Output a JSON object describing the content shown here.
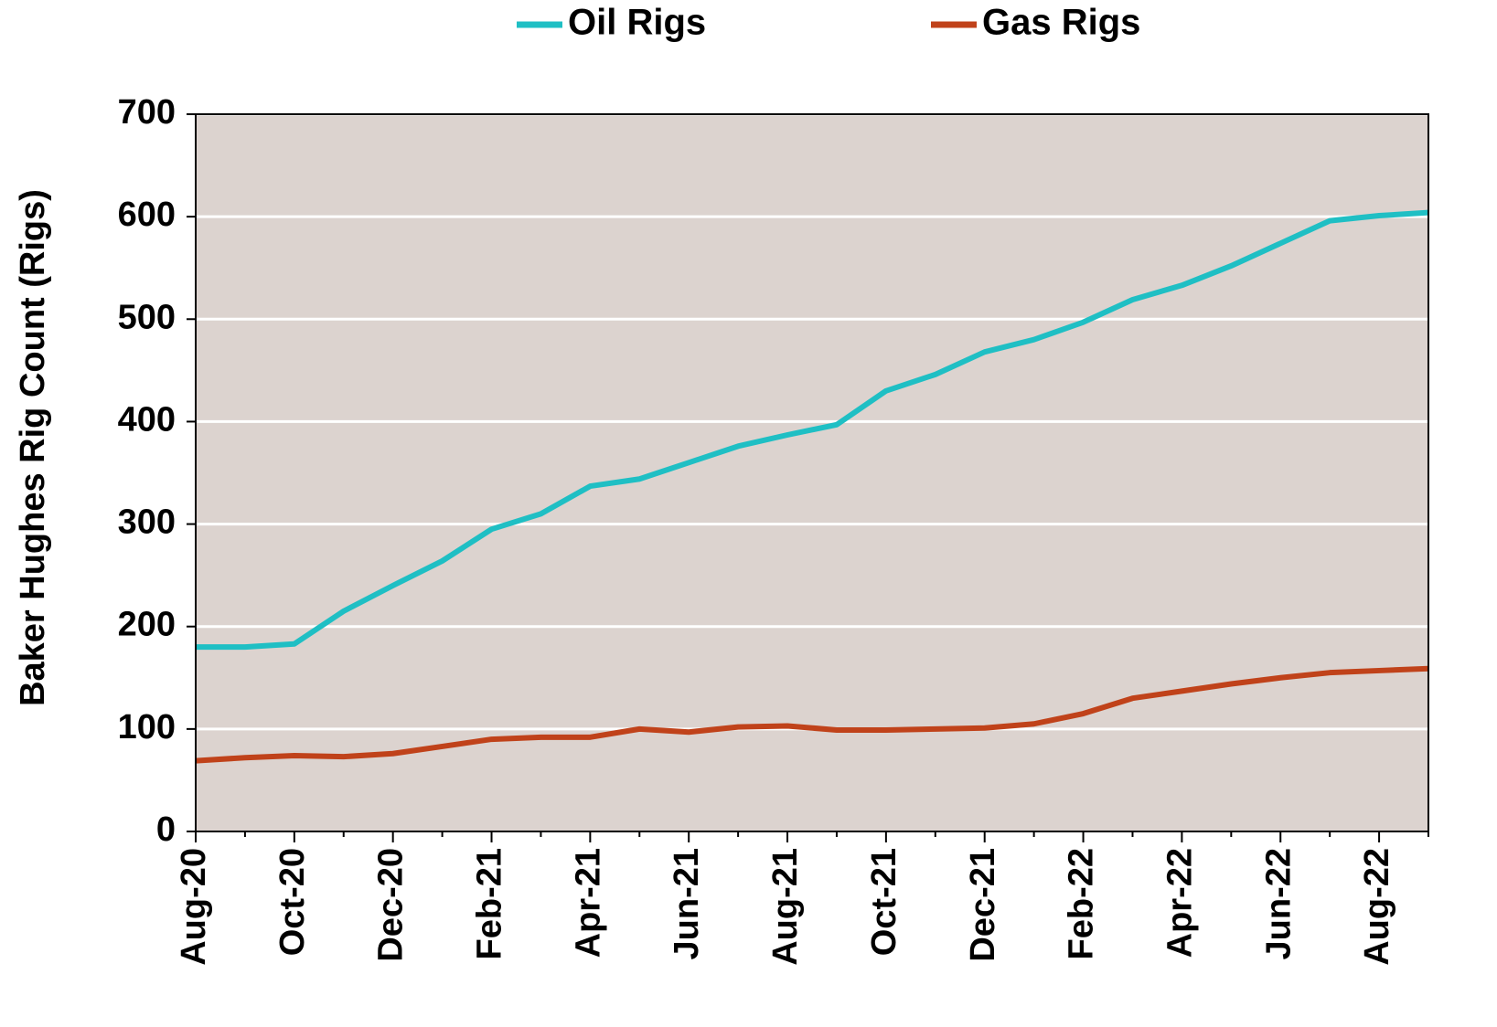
{
  "chart_data": {
    "type": "line",
    "y_label": "Baker Hughes Rig Count (Rigs)",
    "categories": [
      "Aug-20",
      null,
      "Oct-20",
      null,
      "Dec-20",
      null,
      "Feb-21",
      null,
      "Apr-21",
      null,
      "Jun-21",
      null,
      "Aug-21",
      null,
      "Oct-21",
      null,
      "Dec-21",
      null,
      "Feb-22",
      null,
      "Apr-22",
      null,
      "Jun-22",
      null,
      "Aug-22",
      null
    ],
    "series": [
      {
        "name": "Oil Rigs",
        "color": "#1fbfc4",
        "values": [
          180,
          180,
          183,
          215,
          240,
          264,
          295,
          310,
          337,
          344,
          360,
          376,
          387,
          397,
          430,
          446,
          468,
          480,
          497,
          519,
          533,
          552,
          574,
          596,
          601,
          604
        ]
      },
      {
        "name": "Gas Rigs",
        "color": "#c0421a",
        "values": [
          69,
          72,
          74,
          73,
          76,
          83,
          90,
          92,
          92,
          100,
          97,
          102,
          103,
          99,
          99,
          100,
          101,
          105,
          115,
          130,
          137,
          144,
          150,
          155,
          157,
          159
        ]
      }
    ],
    "ylim": [
      0,
      700
    ],
    "yticks": [
      0,
      100,
      200,
      300,
      400,
      500,
      600,
      700
    ],
    "grid": true,
    "legend": "top"
  }
}
